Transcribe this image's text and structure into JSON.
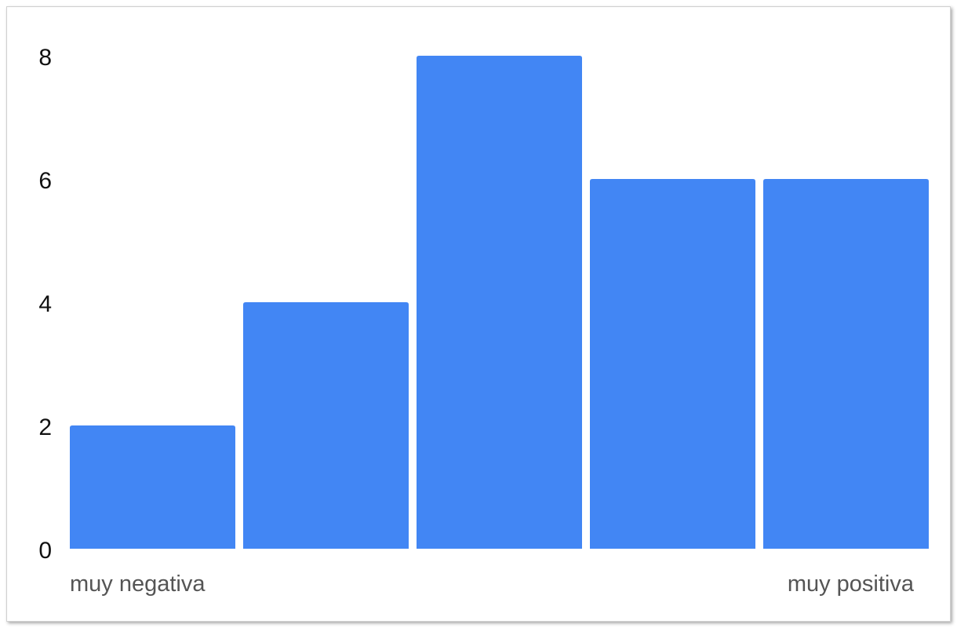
{
  "chart_data": {
    "type": "bar",
    "categories": [
      "muy negativa",
      "",
      "",
      "",
      "muy positiva"
    ],
    "values": [
      2,
      4,
      8,
      6,
      6
    ],
    "title": "",
    "xlabel": "",
    "ylabel": "",
    "ylim": [
      0,
      8
    ],
    "yticks": [
      "0",
      "2",
      "4",
      "6",
      "8"
    ],
    "grid": false,
    "legend": "none",
    "bar_color": "#4286f4",
    "label_color": "#555555"
  }
}
